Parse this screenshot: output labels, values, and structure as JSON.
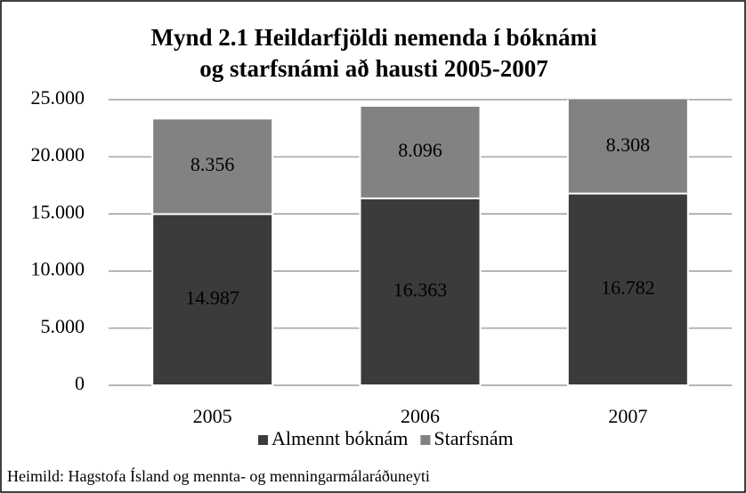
{
  "chart_data": {
    "type": "stacked_bar",
    "title": [
      "Mynd 2.1 Heildarfjöldi nemenda í bóknámi",
      "og starfsnámi að hausti 2005-2007"
    ],
    "categories": [
      "2005",
      "2006",
      "2007"
    ],
    "series": [
      {
        "name": "Almennt bóknám",
        "color": "#3b3b3b",
        "values": [
          14987,
          16363,
          16782
        ],
        "value_labels": [
          "14.987",
          "16.363",
          "16.782"
        ]
      },
      {
        "name": "Starfsnám",
        "color": "#828282",
        "values": [
          8356,
          8096,
          8308
        ],
        "value_labels": [
          "8.356",
          "8.096",
          "8.308"
        ]
      }
    ],
    "ylim": [
      0,
      25000
    ],
    "yticks": [
      0,
      {
        "value": 5000,
        "label": "5.000"
      },
      {
        "value": 10000,
        "label": "10.000"
      },
      {
        "value": 15000,
        "label": "15.000"
      },
      {
        "value": 20000,
        "label": "20.000"
      },
      {
        "value": 25000,
        "label": "25.000"
      }
    ],
    "grid": true,
    "legend": "bottom",
    "source": "Heimild: Hagstofa Ísland og mennta- og menningarmálaráðuneyti"
  }
}
